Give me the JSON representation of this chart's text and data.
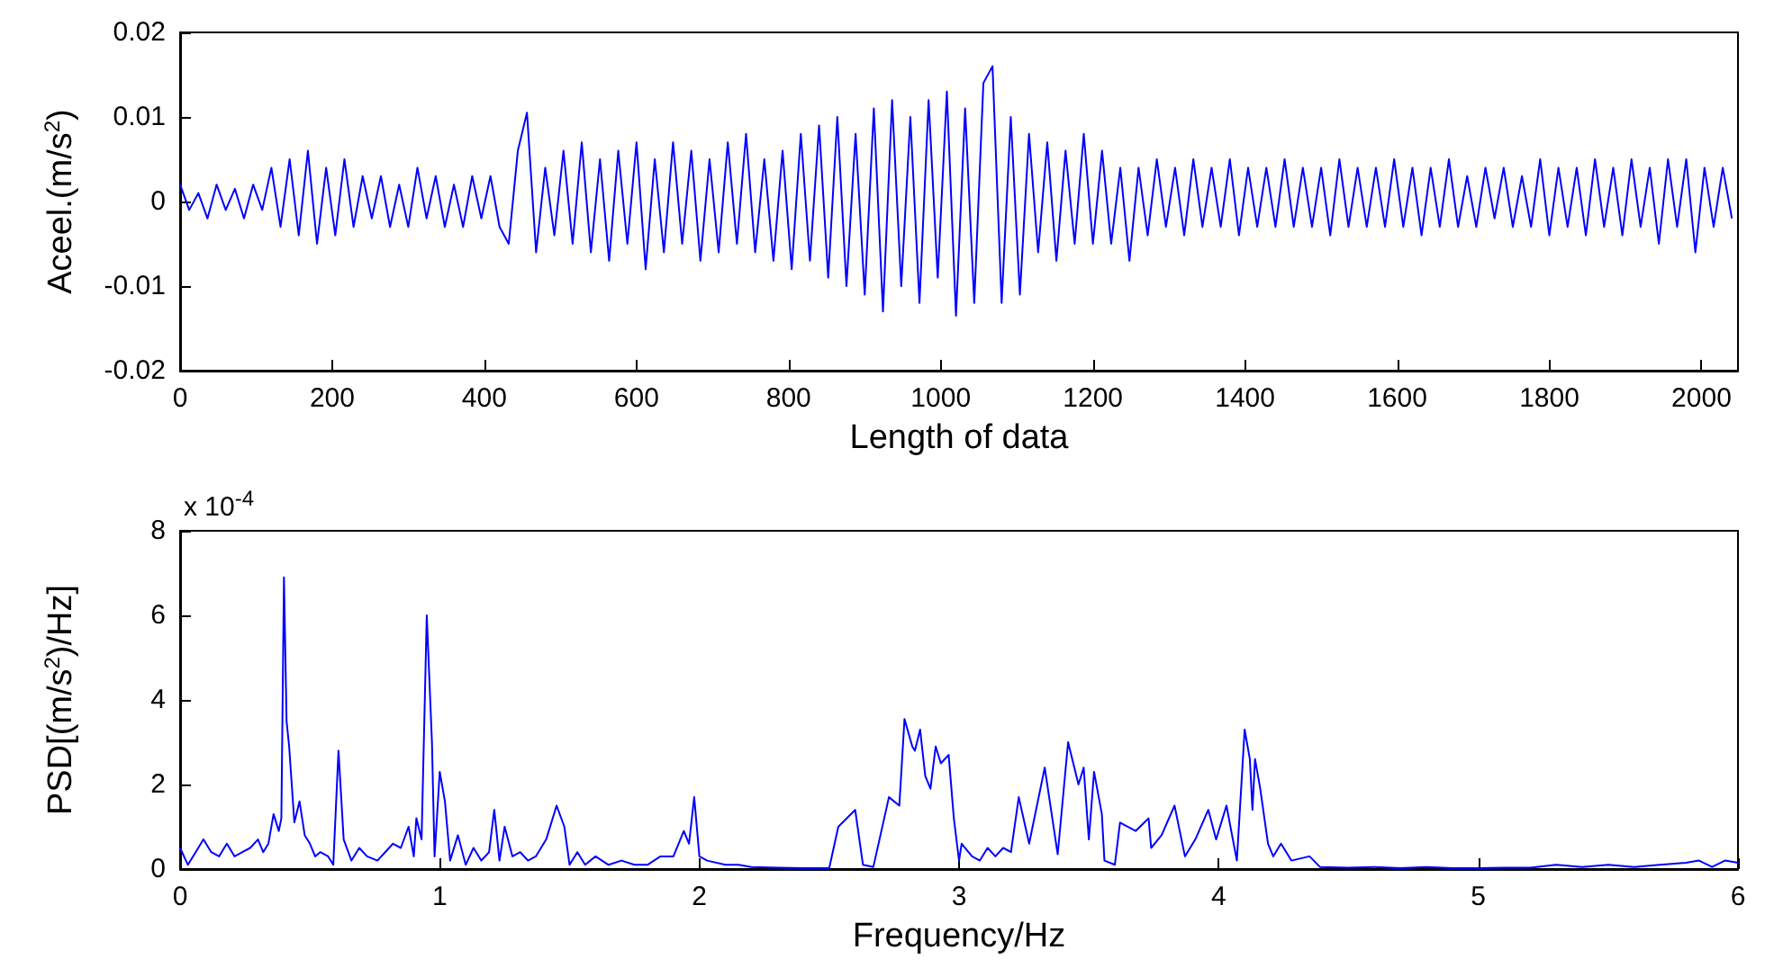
{
  "chart_data": [
    {
      "type": "line",
      "xlabel": "Length of data",
      "ylabel": "Aceel.(m/s$^{2}$)",
      "color": "#0000ff",
      "marker": "none",
      "xlim": [
        0,
        2048
      ],
      "ylim": [
        -0.02,
        0.02
      ],
      "xticks": [
        0,
        200,
        400,
        600,
        800,
        1000,
        1200,
        1400,
        1600,
        1800,
        2000
      ],
      "yticks": [
        -0.02,
        -0.01,
        0,
        0.01,
        0.02
      ],
      "x": [
        0,
        12,
        24,
        36,
        48,
        60,
        72,
        84,
        96,
        108,
        120,
        132,
        144,
        156,
        168,
        180,
        192,
        204,
        216,
        228,
        240,
        252,
        264,
        276,
        288,
        300,
        312,
        324,
        336,
        348,
        360,
        372,
        384,
        396,
        408,
        420,
        432,
        444,
        456,
        468,
        480,
        492,
        504,
        516,
        528,
        540,
        552,
        564,
        576,
        588,
        600,
        612,
        624,
        636,
        648,
        660,
        672,
        684,
        696,
        708,
        720,
        732,
        744,
        756,
        768,
        780,
        792,
        804,
        816,
        828,
        840,
        852,
        864,
        876,
        888,
        900,
        912,
        924,
        936,
        948,
        960,
        972,
        984,
        996,
        1008,
        1020,
        1032,
        1044,
        1056,
        1068,
        1080,
        1092,
        1104,
        1116,
        1128,
        1140,
        1152,
        1164,
        1176,
        1188,
        1200,
        1212,
        1224,
        1236,
        1248,
        1260,
        1272,
        1284,
        1296,
        1308,
        1320,
        1332,
        1344,
        1356,
        1368,
        1380,
        1392,
        1404,
        1416,
        1428,
        1440,
        1452,
        1464,
        1476,
        1488,
        1500,
        1512,
        1524,
        1536,
        1548,
        1560,
        1572,
        1584,
        1596,
        1608,
        1620,
        1632,
        1644,
        1656,
        1668,
        1680,
        1692,
        1704,
        1716,
        1728,
        1740,
        1752,
        1764,
        1776,
        1788,
        1800,
        1812,
        1824,
        1836,
        1848,
        1860,
        1872,
        1884,
        1896,
        1908,
        1920,
        1932,
        1944,
        1956,
        1968,
        1980,
        1992,
        2004,
        2016,
        2028,
        2040
      ],
      "values": [
        0.002,
        -0.001,
        0.001,
        -0.002,
        0.002,
        -0.001,
        0.0015,
        -0.002,
        0.002,
        -0.001,
        0.004,
        -0.003,
        0.005,
        -0.004,
        0.006,
        -0.005,
        0.004,
        -0.004,
        0.005,
        -0.003,
        0.003,
        -0.002,
        0.003,
        -0.003,
        0.002,
        -0.003,
        0.004,
        -0.002,
        0.003,
        -0.003,
        0.002,
        -0.003,
        0.003,
        -0.002,
        0.003,
        -0.003,
        -0.005,
        0.006,
        0.0105,
        -0.006,
        0.004,
        -0.004,
        0.006,
        -0.005,
        0.007,
        -0.006,
        0.005,
        -0.007,
        0.006,
        -0.005,
        0.007,
        -0.008,
        0.005,
        -0.006,
        0.007,
        -0.005,
        0.006,
        -0.007,
        0.005,
        -0.006,
        0.007,
        -0.005,
        0.008,
        -0.006,
        0.005,
        -0.007,
        0.006,
        -0.008,
        0.008,
        -0.007,
        0.009,
        -0.009,
        0.01,
        -0.01,
        0.008,
        -0.011,
        0.011,
        -0.013,
        0.012,
        -0.01,
        0.01,
        -0.012,
        0.012,
        -0.009,
        0.013,
        -0.0135,
        0.011,
        -0.012,
        0.014,
        0.016,
        -0.012,
        0.01,
        -0.011,
        0.008,
        -0.006,
        0.007,
        -0.007,
        0.006,
        -0.005,
        0.008,
        -0.005,
        0.006,
        -0.005,
        0.004,
        -0.007,
        0.004,
        -0.004,
        0.005,
        -0.003,
        0.004,
        -0.004,
        0.005,
        -0.003,
        0.004,
        -0.003,
        0.005,
        -0.004,
        0.004,
        -0.003,
        0.004,
        -0.003,
        0.005,
        -0.003,
        0.004,
        -0.003,
        0.004,
        -0.004,
        0.005,
        -0.003,
        0.004,
        -0.003,
        0.004,
        -0.003,
        0.005,
        -0.003,
        0.004,
        -0.004,
        0.004,
        -0.003,
        0.005,
        -0.003,
        0.003,
        -0.003,
        0.004,
        -0.002,
        0.004,
        -0.003,
        0.003,
        -0.003,
        0.005,
        -0.004,
        0.004,
        -0.003,
        0.004,
        -0.004,
        0.005,
        -0.003,
        0.004,
        -0.004,
        0.005,
        -0.003,
        0.004,
        -0.005,
        0.005,
        -0.003,
        0.005,
        -0.006,
        0.004,
        -0.003,
        0.004,
        -0.002
      ]
    },
    {
      "type": "line",
      "xlabel": "Frequency/Hz",
      "ylabel": "PSD[(m/s$^{2}$)/Hz]",
      "color": "#0000ff",
      "marker": "none",
      "annotations": [
        "x 10$^{-4}$"
      ],
      "xlim": [
        0,
        6
      ],
      "ylim": [
        0,
        8
      ],
      "xticks": [
        0,
        1,
        2,
        3,
        4,
        5,
        6
      ],
      "yticks": [
        0,
        2,
        4,
        6,
        8
      ],
      "x": [
        0,
        0.03,
        0.06,
        0.09,
        0.12,
        0.15,
        0.18,
        0.21,
        0.24,
        0.27,
        0.3,
        0.32,
        0.34,
        0.36,
        0.38,
        0.39,
        0.4,
        0.41,
        0.42,
        0.44,
        0.46,
        0.48,
        0.5,
        0.52,
        0.54,
        0.57,
        0.59,
        0.61,
        0.63,
        0.66,
        0.69,
        0.72,
        0.76,
        0.79,
        0.82,
        0.85,
        0.88,
        0.9,
        0.91,
        0.93,
        0.95,
        0.97,
        0.98,
        1.0,
        1.02,
        1.04,
        1.07,
        1.1,
        1.13,
        1.16,
        1.19,
        1.21,
        1.23,
        1.25,
        1.28,
        1.31,
        1.34,
        1.37,
        1.41,
        1.45,
        1.48,
        1.5,
        1.53,
        1.56,
        1.6,
        1.65,
        1.7,
        1.75,
        1.8,
        1.85,
        1.9,
        1.94,
        1.96,
        1.98,
        2.0,
        2.03,
        2.1,
        2.15,
        2.2,
        2.3,
        2.4,
        2.5,
        2.535,
        2.6,
        2.63,
        2.67,
        2.73,
        2.77,
        2.79,
        2.82,
        2.83,
        2.85,
        2.87,
        2.89,
        2.91,
        2.93,
        2.96,
        2.98,
        3.0,
        3.01,
        3.05,
        3.08,
        3.11,
        3.14,
        3.17,
        3.2,
        3.23,
        3.27,
        3.33,
        3.38,
        3.42,
        3.46,
        3.48,
        3.5,
        3.52,
        3.55,
        3.56,
        3.6,
        3.62,
        3.68,
        3.73,
        3.74,
        3.78,
        3.83,
        3.87,
        3.91,
        3.96,
        3.99,
        4.03,
        4.07,
        4.1,
        4.12,
        4.13,
        4.14,
        4.16,
        4.19,
        4.21,
        4.24,
        4.28,
        4.35,
        4.39,
        4.5,
        4.6,
        4.7,
        4.8,
        4.9,
        5.0,
        5.1,
        5.2,
        5.3,
        5.4,
        5.5,
        5.6,
        5.7,
        5.8,
        5.85,
        5.9,
        5.95,
        6.0
      ],
      "values": [
        0.5,
        0.1,
        0.4,
        0.7,
        0.4,
        0.3,
        0.6,
        0.3,
        0.4,
        0.5,
        0.7,
        0.4,
        0.6,
        1.3,
        0.9,
        1.2,
        6.9,
        3.5,
        2.9,
        1.1,
        1.6,
        0.8,
        0.6,
        0.3,
        0.4,
        0.3,
        0.1,
        2.8,
        0.7,
        0.2,
        0.5,
        0.3,
        0.2,
        0.4,
        0.6,
        0.5,
        1.0,
        0.3,
        1.2,
        0.7,
        6.0,
        3.0,
        0.3,
        2.3,
        1.6,
        0.2,
        0.8,
        0.1,
        0.5,
        0.2,
        0.4,
        1.4,
        0.2,
        1.0,
        0.3,
        0.4,
        0.2,
        0.3,
        0.7,
        1.5,
        1.0,
        0.1,
        0.4,
        0.1,
        0.3,
        0.1,
        0.2,
        0.1,
        0.1,
        0.3,
        0.3,
        0.9,
        0.6,
        1.7,
        0.3,
        0.2,
        0.1,
        0.1,
        0.05,
        0.03,
        0.02,
        0.02,
        1.0,
        1.4,
        0.1,
        0.05,
        1.7,
        1.5,
        3.55,
        2.9,
        2.8,
        3.3,
        2.2,
        1.9,
        2.9,
        2.5,
        2.7,
        1.2,
        0.2,
        0.6,
        0.3,
        0.2,
        0.5,
        0.3,
        0.5,
        0.4,
        1.7,
        0.6,
        2.4,
        0.35,
        3.0,
        2.0,
        2.4,
        0.7,
        2.3,
        1.3,
        0.2,
        0.1,
        1.1,
        0.9,
        1.2,
        0.5,
        0.8,
        1.5,
        0.3,
        0.7,
        1.4,
        0.7,
        1.5,
        0.2,
        3.3,
        2.6,
        1.4,
        2.6,
        1.9,
        0.6,
        0.3,
        0.6,
        0.2,
        0.3,
        0.05,
        0.03,
        0.05,
        0.02,
        0.05,
        0.02,
        0.02,
        0.03,
        0.03,
        0.1,
        0.05,
        0.1,
        0.05,
        0.1,
        0.15,
        0.2,
        0.05,
        0.2,
        0.15
      ]
    }
  ]
}
